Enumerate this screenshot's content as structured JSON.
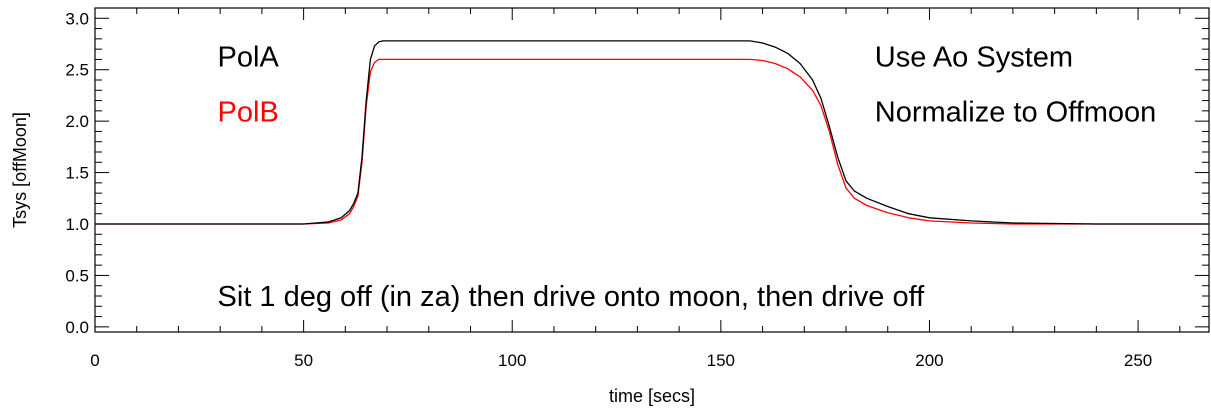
{
  "chart_data": {
    "type": "line",
    "title": "",
    "xlabel": "time [secs]",
    "ylabel": "Tsys [offMoon]",
    "xlim": [
      0,
      267
    ],
    "ylim": [
      -0.05,
      3.1
    ],
    "x_ticks": [
      0,
      50,
      100,
      150,
      200,
      250
    ],
    "x_tick_labels": [
      "0",
      "50",
      "100",
      "150",
      "200",
      "250"
    ],
    "y_ticks": [
      0.0,
      0.5,
      1.0,
      1.5,
      2.0,
      2.5,
      3.0
    ],
    "y_tick_labels": [
      "0.0",
      "0.5",
      "1.0",
      "1.5",
      "2.0",
      "2.5",
      "3.0"
    ],
    "grid": false,
    "series": [
      {
        "name": "PolA",
        "color": "#000000",
        "x": [
          0,
          50,
          56,
          59,
          61,
          62,
          63,
          64,
          65,
          66,
          67,
          68,
          69,
          70,
          80,
          100,
          120,
          140,
          150,
          155,
          157,
          160,
          163,
          166,
          169,
          172,
          174,
          176,
          178,
          180,
          182,
          185,
          190,
          195,
          200,
          210,
          220,
          240,
          267
        ],
        "values": [
          1.0,
          1.0,
          1.02,
          1.06,
          1.13,
          1.2,
          1.3,
          1.65,
          2.2,
          2.6,
          2.73,
          2.77,
          2.78,
          2.78,
          2.78,
          2.78,
          2.78,
          2.78,
          2.78,
          2.78,
          2.78,
          2.76,
          2.72,
          2.66,
          2.56,
          2.4,
          2.22,
          1.95,
          1.65,
          1.42,
          1.32,
          1.25,
          1.17,
          1.1,
          1.06,
          1.03,
          1.01,
          1.0,
          1.0
        ]
      },
      {
        "name": "PolB",
        "color": "#ff0000",
        "x": [
          0,
          50,
          56,
          59,
          61,
          62,
          63,
          64,
          65,
          66,
          67,
          68,
          69,
          70,
          80,
          100,
          120,
          140,
          150,
          155,
          157,
          160,
          163,
          166,
          169,
          172,
          174,
          176,
          178,
          180,
          182,
          185,
          190,
          195,
          200,
          210,
          220,
          240,
          267
        ],
        "values": [
          1.0,
          1.0,
          1.01,
          1.04,
          1.1,
          1.17,
          1.27,
          1.6,
          2.15,
          2.48,
          2.57,
          2.6,
          2.6,
          2.6,
          2.6,
          2.6,
          2.6,
          2.6,
          2.6,
          2.6,
          2.6,
          2.59,
          2.56,
          2.51,
          2.43,
          2.3,
          2.15,
          1.9,
          1.58,
          1.35,
          1.25,
          1.18,
          1.11,
          1.06,
          1.03,
          1.01,
          1.0,
          1.0,
          1.0
        ]
      }
    ],
    "annotations": [
      {
        "text": "PolA",
        "color": "#000000",
        "ax": 0.11,
        "ay": 0.82
      },
      {
        "text": "PolB",
        "color": "#ff0000",
        "ax": 0.11,
        "ay": 0.65
      },
      {
        "text": "Use Ao System",
        "color": "#000000",
        "ax": 0.7,
        "ay": 0.82
      },
      {
        "text": "Normalize to Offmoon",
        "color": "#000000",
        "ax": 0.7,
        "ay": 0.65
      },
      {
        "text": "Sit 1 deg off (in za) then drive onto moon, then drive off",
        "color": "#000000",
        "ax": 0.11,
        "ay": 0.08
      }
    ]
  }
}
